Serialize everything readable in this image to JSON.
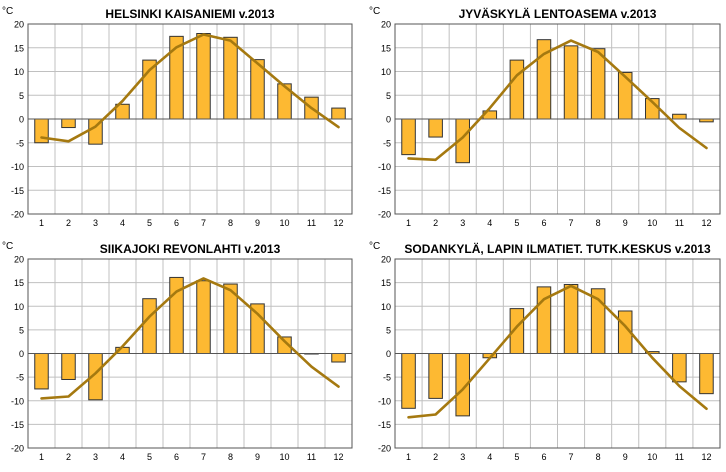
{
  "chart_data": [
    {
      "type": "bar",
      "title": "HELSINKI KAISANIEMI v.2013",
      "ylabel": "°C",
      "categories": [
        "1",
        "2",
        "3",
        "4",
        "5",
        "6",
        "7",
        "8",
        "9",
        "10",
        "11",
        "12"
      ],
      "ylim": [
        -20,
        20
      ],
      "yticks": [
        -20,
        -15,
        -10,
        -5,
        0,
        5,
        10,
        15,
        20
      ],
      "grid": true,
      "series": [
        {
          "values": [
            -5.0,
            -1.8,
            -5.3,
            3.1,
            12.4,
            17.4,
            18.0,
            17.2,
            12.5,
            7.4,
            4.6,
            2.3
          ]
        },
        {
          "values": [
            -3.9,
            -4.7,
            -1.6,
            3.8,
            10.3,
            15.1,
            17.8,
            16.5,
            11.7,
            6.9,
            2.3,
            -1.7
          ]
        }
      ]
    },
    {
      "type": "bar",
      "title": "JYVÄSKYLÄ LENTOASEMA v.2013",
      "ylabel": "°C",
      "categories": [
        "1",
        "2",
        "3",
        "4",
        "5",
        "6",
        "7",
        "8",
        "9",
        "10",
        "11",
        "12"
      ],
      "ylim": [
        -20,
        20
      ],
      "yticks": [
        -20,
        -15,
        -10,
        -5,
        0,
        5,
        10,
        15,
        20
      ],
      "grid": true,
      "series": [
        {
          "values": [
            -7.5,
            -3.8,
            -9.2,
            1.7,
            12.4,
            16.7,
            15.4,
            14.8,
            9.8,
            4.3,
            1.0,
            -0.6
          ]
        },
        {
          "values": [
            -8.3,
            -8.6,
            -3.9,
            2.3,
            9.2,
            13.7,
            16.5,
            14.1,
            8.9,
            3.6,
            -1.9,
            -6.1
          ]
        }
      ]
    },
    {
      "type": "bar",
      "title": "SIIKAJOKI REVONLAHTI v.2013",
      "ylabel": "°C",
      "categories": [
        "1",
        "2",
        "3",
        "4",
        "5",
        "6",
        "7",
        "8",
        "9",
        "10",
        "11",
        "12"
      ],
      "ylim": [
        -20,
        20
      ],
      "yticks": [
        -20,
        -15,
        -10,
        -5,
        0,
        5,
        10,
        15,
        20
      ],
      "grid": true,
      "series": [
        {
          "values": [
            -7.5,
            -5.5,
            -9.8,
            1.3,
            11.6,
            16.1,
            15.4,
            14.7,
            10.5,
            3.5,
            0.0,
            -1.8
          ]
        },
        {
          "values": [
            -9.5,
            -9.1,
            -4.2,
            1.5,
            7.8,
            13.1,
            15.9,
            13.4,
            8.4,
            2.6,
            -2.8,
            -7.0
          ]
        }
      ]
    },
    {
      "type": "bar",
      "title": "SODANKYLÄ, LAPIN ILMATIET. TUTK.KESKUS v.2013",
      "ylabel": "°C",
      "categories": [
        "1",
        "2",
        "3",
        "4",
        "5",
        "6",
        "7",
        "8",
        "9",
        "10",
        "11",
        "12"
      ],
      "ylim": [
        -20,
        20
      ],
      "yticks": [
        -20,
        -15,
        -10,
        -5,
        0,
        5,
        10,
        15,
        20
      ],
      "grid": true,
      "series": [
        {
          "values": [
            -11.6,
            -9.5,
            -13.2,
            -0.9,
            9.5,
            14.1,
            14.6,
            13.7,
            9.0,
            0.4,
            -6.0,
            -8.5
          ]
        },
        {
          "values": [
            -13.5,
            -12.9,
            -7.6,
            -1.0,
            5.7,
            11.5,
            14.3,
            11.5,
            5.8,
            -0.9,
            -6.9,
            -11.7
          ]
        }
      ]
    }
  ],
  "colors": {
    "bar_fill": "#fdb932",
    "bar_stroke": "#333333",
    "line": "#a57910",
    "grid": "#c0c0c0",
    "axis": "#555555",
    "text": "#000000"
  }
}
